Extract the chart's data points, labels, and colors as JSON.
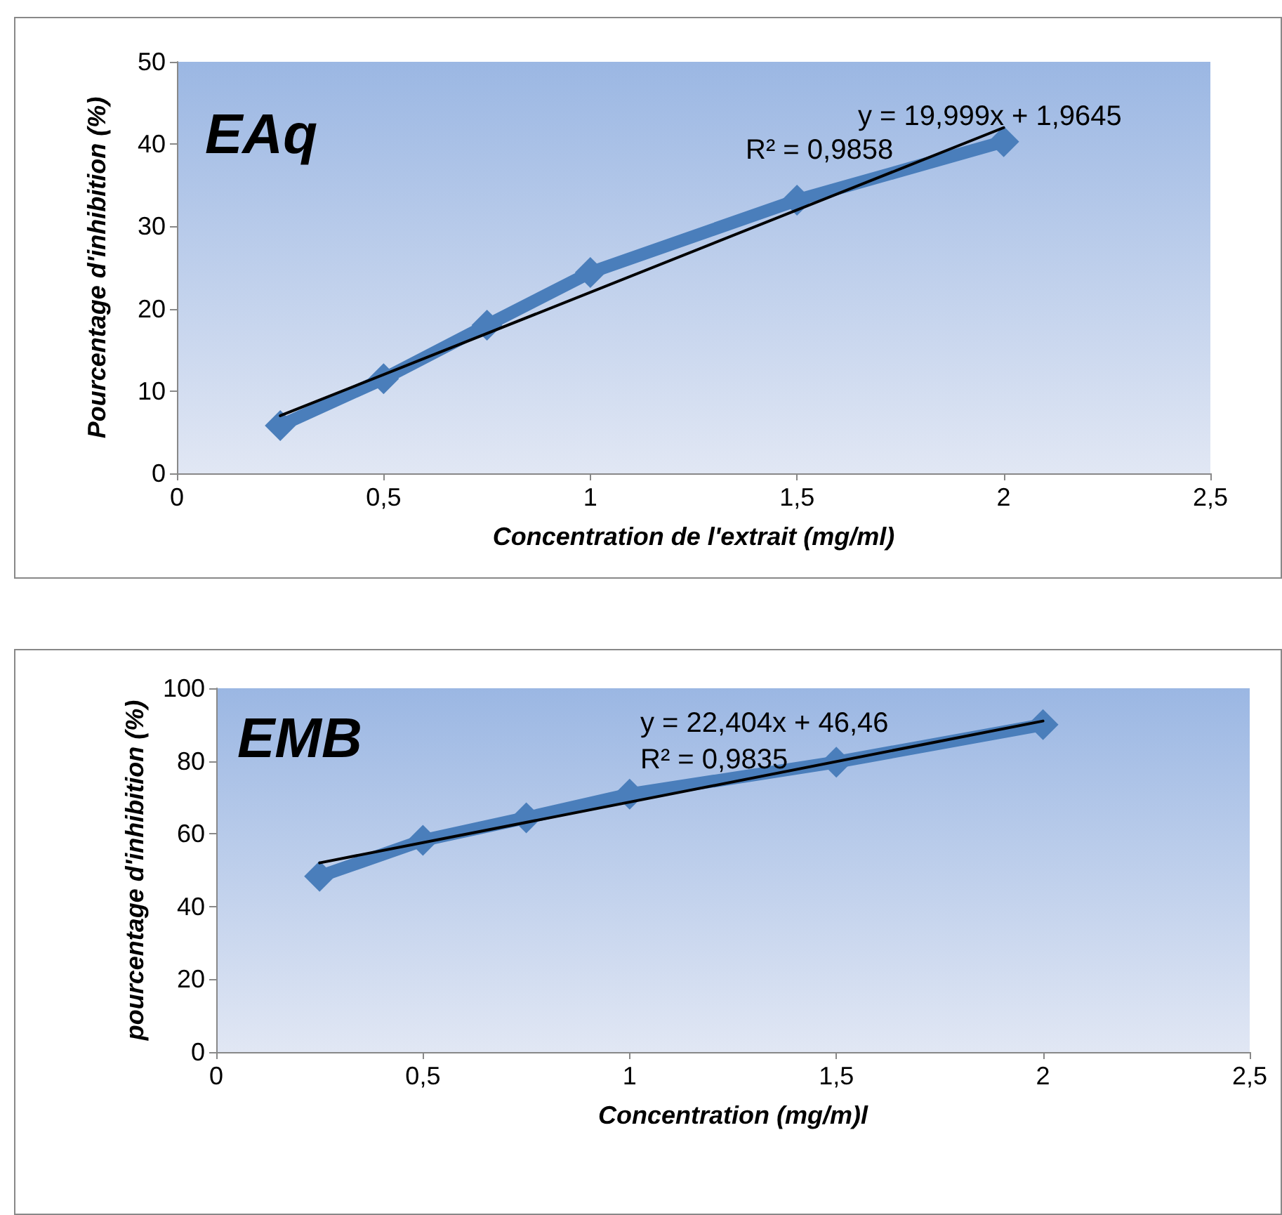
{
  "chart_data": [
    {
      "type": "line",
      "title": "EAq",
      "xlabel": "Concentration de l'extrait (mg/ml)",
      "ylabel": "Pourcentage d'inhibition (%)",
      "x": [
        0.25,
        0.5,
        0.75,
        1,
        1.5,
        2
      ],
      "series": [
        {
          "color": "#4a7ebb",
          "values": [
            5.8,
            11.5,
            18,
            24.4,
            33.2,
            40.3
          ],
          "marker": "diamond"
        },
        {
          "type": "line",
          "color": "#000000",
          "values": [
            7,
            null,
            null,
            null,
            null,
            42
          ],
          "marker": "none"
        }
      ],
      "annotations": [
        "y = 19,999x + 1,9645",
        "R² = 0,9858"
      ],
      "xlim": [
        0,
        2.5
      ],
      "xticks": [
        0,
        {
          "value": 0.5,
          "label": "0,5"
        },
        1,
        {
          "value": 1.5,
          "label": "1,5"
        },
        2,
        {
          "value": 2.5,
          "label": "2,5"
        }
      ],
      "ylim": [
        0,
        50
      ],
      "yticks": [
        0,
        10,
        20,
        30,
        40,
        50
      ],
      "grid": false
    },
    {
      "type": "line",
      "title": "EMB",
      "xlabel": "Concentration (mg/m)l",
      "ylabel": "pourcentage d'inhibition (%)",
      "x": [
        0.25,
        0.5,
        0.75,
        1,
        1.5,
        2
      ],
      "series": [
        {
          "color": "#4a7ebb",
          "values": [
            48.3,
            58.2,
            64.4,
            70.9,
            79.7,
            90
          ],
          "marker": "diamond"
        },
        {
          "type": "line",
          "color": "#000000",
          "values": [
            52,
            null,
            null,
            null,
            null,
            91
          ],
          "marker": "none"
        }
      ],
      "annotations": [
        "y = 22,404x + 46,46",
        "R² = 0,9835"
      ],
      "xlim": [
        0,
        2.5
      ],
      "xticks": [
        0,
        {
          "value": 0.5,
          "label": "0,5"
        },
        1,
        {
          "value": 1.5,
          "label": "1,5"
        },
        2,
        {
          "value": 2.5,
          "label": "2,5"
        }
      ],
      "ylim": [
        0,
        100
      ],
      "yticks": [
        0,
        20,
        40,
        60,
        80,
        100
      ],
      "grid": false
    }
  ]
}
